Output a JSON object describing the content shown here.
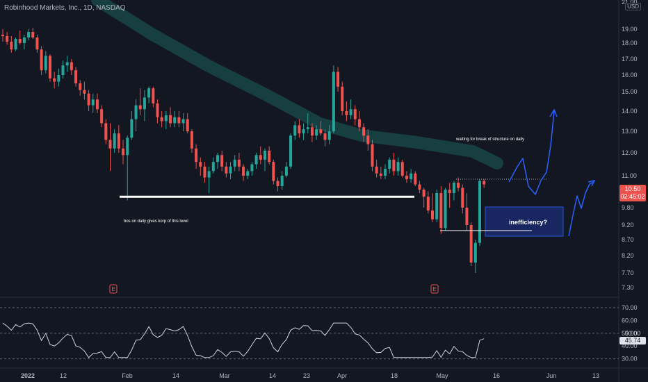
{
  "header": {
    "title": "Robinhood Markets, Inc., 1D, NASDAQ",
    "currency": "USD"
  },
  "price_tag": {
    "price": "10.50",
    "countdown": "02:45:02"
  },
  "rsi_tag": {
    "value": "45.74",
    "level": "50.00"
  },
  "annotations": {
    "bos": "bos on daily gives korp of this level",
    "waiting": "waiting for break of structure on daily",
    "inefficiency": "inefficiency?"
  },
  "colors": {
    "background": "#131722",
    "up": "#26a69a",
    "down": "#ef5350",
    "neutral": "#787b86",
    "grid_text": "#b2b5be",
    "drawing_blue": "#2962ff",
    "band": "#1b5e5a"
  },
  "earnings_markers": [
    {
      "date": "Jan 28",
      "label": "E"
    },
    {
      "date": "May 3",
      "label": "E"
    }
  ],
  "chart_data": [
    {
      "type": "candlestick",
      "title": "Robinhood Markets, Inc., 1D, NASDAQ",
      "x_tick_labels": [
        "2022",
        "12",
        "Feb",
        "14",
        "Mar",
        "14",
        "23",
        "Apr",
        "18",
        "May",
        "16",
        "Jun",
        "13"
      ],
      "y_tick_labels": [
        "21.00",
        "19.00",
        "18.00",
        "17.00",
        "16.00",
        "15.00",
        "14.00",
        "13.00",
        "12.00",
        "11.00",
        "10.00",
        "9.80",
        "9.20",
        "8.70",
        "8.20",
        "7.70",
        "7.30"
      ],
      "last_price": 10.5,
      "candles": [
        {
          "o": 18.6,
          "h": 19.0,
          "l": 18.1,
          "c": 18.5
        },
        {
          "o": 18.5,
          "h": 18.8,
          "l": 17.9,
          "c": 18.1
        },
        {
          "o": 18.1,
          "h": 18.5,
          "l": 17.4,
          "c": 17.6
        },
        {
          "o": 17.6,
          "h": 18.4,
          "l": 17.5,
          "c": 18.3
        },
        {
          "o": 18.3,
          "h": 18.9,
          "l": 17.9,
          "c": 18.0
        },
        {
          "o": 18.0,
          "h": 18.6,
          "l": 17.6,
          "c": 18.4
        },
        {
          "o": 18.4,
          "h": 19.0,
          "l": 18.2,
          "c": 18.8
        },
        {
          "o": 18.8,
          "h": 19.1,
          "l": 18.3,
          "c": 18.4
        },
        {
          "o": 18.4,
          "h": 18.6,
          "l": 17.4,
          "c": 17.6
        },
        {
          "o": 17.6,
          "h": 17.8,
          "l": 16.0,
          "c": 16.3
        },
        {
          "o": 16.3,
          "h": 17.5,
          "l": 16.1,
          "c": 17.2
        },
        {
          "o": 17.2,
          "h": 17.3,
          "l": 15.6,
          "c": 15.8
        },
        {
          "o": 15.8,
          "h": 16.2,
          "l": 15.2,
          "c": 15.6
        },
        {
          "o": 15.6,
          "h": 16.4,
          "l": 15.3,
          "c": 16.0
        },
        {
          "o": 16.0,
          "h": 16.9,
          "l": 15.8,
          "c": 16.6
        },
        {
          "o": 16.6,
          "h": 17.2,
          "l": 16.2,
          "c": 16.8
        },
        {
          "o": 16.8,
          "h": 17.0,
          "l": 16.0,
          "c": 16.3
        },
        {
          "o": 16.3,
          "h": 16.5,
          "l": 15.3,
          "c": 15.5
        },
        {
          "o": 15.5,
          "h": 15.7,
          "l": 14.8,
          "c": 15.1
        },
        {
          "o": 15.1,
          "h": 15.6,
          "l": 14.6,
          "c": 14.9
        },
        {
          "o": 14.9,
          "h": 15.1,
          "l": 14.0,
          "c": 14.3
        },
        {
          "o": 14.3,
          "h": 14.9,
          "l": 13.9,
          "c": 14.6
        },
        {
          "o": 14.6,
          "h": 14.9,
          "l": 13.9,
          "c": 14.1
        },
        {
          "o": 14.1,
          "h": 14.3,
          "l": 13.2,
          "c": 13.4
        },
        {
          "o": 13.4,
          "h": 13.6,
          "l": 12.4,
          "c": 12.6
        },
        {
          "o": 12.6,
          "h": 13.4,
          "l": 11.2,
          "c": 12.2
        },
        {
          "o": 12.2,
          "h": 13.1,
          "l": 12.0,
          "c": 12.9
        },
        {
          "o": 12.9,
          "h": 13.3,
          "l": 12.0,
          "c": 12.2
        },
        {
          "o": 12.2,
          "h": 12.6,
          "l": 11.5,
          "c": 11.9
        },
        {
          "o": 11.9,
          "h": 12.8,
          "l": 9.9,
          "c": 12.7
        },
        {
          "o": 12.7,
          "h": 14.0,
          "l": 12.6,
          "c": 13.6
        },
        {
          "o": 13.6,
          "h": 14.6,
          "l": 13.0,
          "c": 14.3
        },
        {
          "o": 14.3,
          "h": 15.2,
          "l": 13.8,
          "c": 14.1
        },
        {
          "o": 14.1,
          "h": 15.1,
          "l": 13.5,
          "c": 14.7
        },
        {
          "o": 14.7,
          "h": 15.3,
          "l": 14.4,
          "c": 15.2
        },
        {
          "o": 15.2,
          "h": 15.3,
          "l": 14.2,
          "c": 14.4
        },
        {
          "o": 14.4,
          "h": 14.6,
          "l": 13.4,
          "c": 13.7
        },
        {
          "o": 13.7,
          "h": 14.0,
          "l": 13.2,
          "c": 13.5
        },
        {
          "o": 13.5,
          "h": 14.0,
          "l": 13.1,
          "c": 13.8
        },
        {
          "o": 13.8,
          "h": 14.2,
          "l": 13.2,
          "c": 13.4
        },
        {
          "o": 13.4,
          "h": 14.0,
          "l": 13.2,
          "c": 13.7
        },
        {
          "o": 13.7,
          "h": 14.0,
          "l": 13.2,
          "c": 13.4
        },
        {
          "o": 13.4,
          "h": 13.9,
          "l": 13.0,
          "c": 13.6
        },
        {
          "o": 13.6,
          "h": 13.9,
          "l": 12.9,
          "c": 13.0
        },
        {
          "o": 13.0,
          "h": 13.1,
          "l": 12.0,
          "c": 12.2
        },
        {
          "o": 12.2,
          "h": 12.4,
          "l": 11.3,
          "c": 11.6
        },
        {
          "o": 11.6,
          "h": 11.8,
          "l": 11.0,
          "c": 11.4
        },
        {
          "o": 11.4,
          "h": 11.6,
          "l": 10.6,
          "c": 10.9
        },
        {
          "o": 10.9,
          "h": 11.4,
          "l": 10.0,
          "c": 11.2
        },
        {
          "o": 11.2,
          "h": 11.8,
          "l": 11.1,
          "c": 11.6
        },
        {
          "o": 11.6,
          "h": 12.0,
          "l": 11.3,
          "c": 11.9
        },
        {
          "o": 11.9,
          "h": 12.1,
          "l": 11.2,
          "c": 11.4
        },
        {
          "o": 11.4,
          "h": 11.6,
          "l": 10.9,
          "c": 11.1
        },
        {
          "o": 11.1,
          "h": 11.6,
          "l": 10.8,
          "c": 11.4
        },
        {
          "o": 11.4,
          "h": 11.9,
          "l": 11.2,
          "c": 11.7
        },
        {
          "o": 11.7,
          "h": 12.0,
          "l": 11.2,
          "c": 11.4
        },
        {
          "o": 11.4,
          "h": 11.5,
          "l": 10.7,
          "c": 11.0
        },
        {
          "o": 11.0,
          "h": 11.3,
          "l": 10.8,
          "c": 11.2
        },
        {
          "o": 11.2,
          "h": 11.6,
          "l": 11.0,
          "c": 11.5
        },
        {
          "o": 11.5,
          "h": 12.0,
          "l": 11.3,
          "c": 11.9
        },
        {
          "o": 11.9,
          "h": 12.3,
          "l": 11.5,
          "c": 11.7
        },
        {
          "o": 11.7,
          "h": 12.2,
          "l": 11.2,
          "c": 12.1
        },
        {
          "o": 12.1,
          "h": 12.3,
          "l": 11.5,
          "c": 11.6
        },
        {
          "o": 11.6,
          "h": 11.7,
          "l": 10.5,
          "c": 10.7
        },
        {
          "o": 10.7,
          "h": 10.9,
          "l": 10.1,
          "c": 10.4
        },
        {
          "o": 10.4,
          "h": 11.2,
          "l": 10.2,
          "c": 11.0
        },
        {
          "o": 11.0,
          "h": 11.6,
          "l": 10.9,
          "c": 11.4
        },
        {
          "o": 11.4,
          "h": 12.9,
          "l": 11.3,
          "c": 12.8
        },
        {
          "o": 12.8,
          "h": 13.5,
          "l": 12.6,
          "c": 13.3
        },
        {
          "o": 13.3,
          "h": 13.6,
          "l": 12.7,
          "c": 12.9
        },
        {
          "o": 12.9,
          "h": 13.4,
          "l": 12.6,
          "c": 13.1
        },
        {
          "o": 13.1,
          "h": 13.9,
          "l": 12.9,
          "c": 13.2
        },
        {
          "o": 13.2,
          "h": 13.4,
          "l": 12.5,
          "c": 12.8
        },
        {
          "o": 12.8,
          "h": 13.3,
          "l": 12.6,
          "c": 13.1
        },
        {
          "o": 13.1,
          "h": 13.5,
          "l": 12.8,
          "c": 12.9
        },
        {
          "o": 12.9,
          "h": 13.1,
          "l": 12.3,
          "c": 12.6
        },
        {
          "o": 12.6,
          "h": 13.3,
          "l": 12.4,
          "c": 13.0
        },
        {
          "o": 13.0,
          "h": 16.6,
          "l": 12.9,
          "c": 16.2
        },
        {
          "o": 16.2,
          "h": 16.5,
          "l": 15.0,
          "c": 15.3
        },
        {
          "o": 15.3,
          "h": 15.6,
          "l": 13.8,
          "c": 14.0
        },
        {
          "o": 14.0,
          "h": 14.5,
          "l": 13.5,
          "c": 13.8
        },
        {
          "o": 13.8,
          "h": 14.6,
          "l": 13.6,
          "c": 14.1
        },
        {
          "o": 14.1,
          "h": 14.3,
          "l": 13.3,
          "c": 13.6
        },
        {
          "o": 13.6,
          "h": 14.0,
          "l": 13.0,
          "c": 13.2
        },
        {
          "o": 13.2,
          "h": 13.4,
          "l": 12.5,
          "c": 12.8
        },
        {
          "o": 12.8,
          "h": 13.1,
          "l": 12.1,
          "c": 12.4
        },
        {
          "o": 12.4,
          "h": 12.6,
          "l": 11.2,
          "c": 11.4
        },
        {
          "o": 11.4,
          "h": 11.7,
          "l": 10.9,
          "c": 11.1
        },
        {
          "o": 11.1,
          "h": 11.4,
          "l": 10.8,
          "c": 11.0
        },
        {
          "o": 11.0,
          "h": 11.5,
          "l": 10.8,
          "c": 11.3
        },
        {
          "o": 11.3,
          "h": 11.8,
          "l": 11.1,
          "c": 11.7
        },
        {
          "o": 11.7,
          "h": 12.0,
          "l": 11.0,
          "c": 11.2
        },
        {
          "o": 11.2,
          "h": 11.8,
          "l": 11.0,
          "c": 11.6
        },
        {
          "o": 11.6,
          "h": 11.7,
          "l": 10.9,
          "c": 11.0
        },
        {
          "o": 11.0,
          "h": 11.2,
          "l": 10.6,
          "c": 10.8
        },
        {
          "o": 10.8,
          "h": 11.3,
          "l": 10.6,
          "c": 11.1
        },
        {
          "o": 11.1,
          "h": 11.2,
          "l": 10.4,
          "c": 10.5
        },
        {
          "o": 10.5,
          "h": 10.7,
          "l": 10.0,
          "c": 10.2
        },
        {
          "o": 10.2,
          "h": 10.3,
          "l": 9.8,
          "c": 9.95
        },
        {
          "o": 9.95,
          "h": 10.1,
          "l": 9.6,
          "c": 9.7
        },
        {
          "o": 9.7,
          "h": 10.0,
          "l": 9.3,
          "c": 9.4
        },
        {
          "o": 9.4,
          "h": 10.2,
          "l": 9.3,
          "c": 10.0
        },
        {
          "o": 10.0,
          "h": 10.4,
          "l": 8.9,
          "c": 9.1
        },
        {
          "o": 9.1,
          "h": 10.3,
          "l": 9.0,
          "c": 10.2
        },
        {
          "o": 10.2,
          "h": 10.6,
          "l": 9.8,
          "c": 10.0
        },
        {
          "o": 10.0,
          "h": 10.7,
          "l": 9.9,
          "c": 10.6
        },
        {
          "o": 10.6,
          "h": 10.9,
          "l": 10.1,
          "c": 10.3
        },
        {
          "o": 10.3,
          "h": 10.5,
          "l": 9.6,
          "c": 9.8
        },
        {
          "o": 9.8,
          "h": 10.0,
          "l": 9.0,
          "c": 9.2
        },
        {
          "o": 9.2,
          "h": 9.3,
          "l": 7.9,
          "c": 8.0
        },
        {
          "o": 8.0,
          "h": 8.7,
          "l": 7.7,
          "c": 8.6
        },
        {
          "o": 8.6,
          "h": 10.8,
          "l": 8.5,
          "c": 10.7
        },
        {
          "o": 10.7,
          "h": 10.8,
          "l": 10.3,
          "c": 10.5
        }
      ],
      "support_level": 9.95,
      "projection_paths": [
        [
          [
            11.0,
            11.3,
            11.8,
            11.2,
            10.7,
            10.9,
            11.9,
            12.3,
            14.3
          ],
          [
            0,
            1,
            2,
            3,
            4,
            5,
            6,
            7,
            8
          ]
        ],
        [
          [
            9.1,
            9.4,
            10.0,
            10.3,
            10.1,
            10.4,
            10.8,
            10.9
          ],
          [
            0,
            1,
            2,
            3,
            4,
            5,
            6,
            7
          ]
        ]
      ],
      "rsi": {
        "ylim": [
          26,
          76
        ],
        "y_tick_labels": [
          "70.00",
          "60.00",
          "50.00",
          "40.00",
          "30.00"
        ],
        "levels": [
          70,
          50,
          30
        ],
        "current": 45.74
      }
    }
  ]
}
